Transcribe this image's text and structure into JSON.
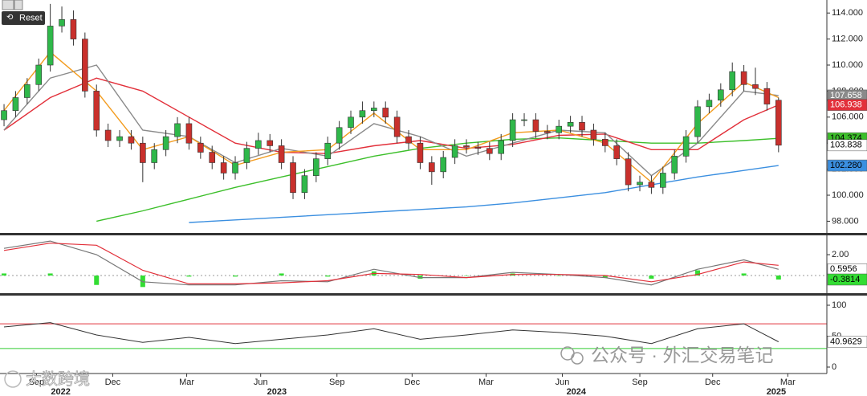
{
  "toolbar": {
    "reset": "Reset"
  },
  "watermarks": {
    "wechat": "公众号 · 外汇交易笔记",
    "logo": "大数跨境"
  },
  "chart_data": [
    {
      "type": "candlestick",
      "open": [
        105.8,
        106.5,
        107.5,
        108.5,
        110,
        113,
        113.5,
        112,
        108,
        105,
        104.2,
        104.5,
        104,
        102.5,
        103.5,
        104.5,
        105.5,
        104,
        103.3,
        102.5,
        101.7,
        102.5,
        103.6,
        104.2,
        103.8,
        102.5,
        100.2,
        101.5,
        102.8,
        104,
        105.2,
        106,
        106.5,
        106.7,
        106,
        104.5,
        104,
        102.5,
        101.8,
        102.9,
        103.8,
        103.7,
        103.6,
        103.2,
        104.2,
        105.8,
        105.8,
        104.9,
        104.8,
        105.3,
        105.6,
        105,
        104.3,
        103.8,
        102.8,
        100.8,
        101,
        100.6,
        101.7,
        103,
        104.5,
        106.8,
        107.3,
        108.1,
        109.5,
        108.5,
        108.2,
        107.3
      ],
      "close": [
        106.5,
        107.5,
        108.5,
        110,
        113,
        113.5,
        112,
        108,
        105,
        104.2,
        104.5,
        104,
        102.5,
        103.5,
        104.5,
        105.5,
        104,
        103.3,
        102.5,
        101.7,
        102.5,
        103.6,
        104.2,
        103.8,
        102.5,
        100.2,
        101.5,
        102.8,
        104,
        105.2,
        106,
        106.5,
        106.7,
        106,
        104.5,
        104,
        102.5,
        101.8,
        102.9,
        103.8,
        103.7,
        103.6,
        103.2,
        104.2,
        105.8,
        105.8,
        104.9,
        104.8,
        105.3,
        105.6,
        105,
        104.3,
        103.8,
        102.8,
        100.8,
        101,
        100.6,
        101.7,
        103,
        104.5,
        106.8,
        107.3,
        108.1,
        109.5,
        108.5,
        108.2,
        107,
        103.84
      ],
      "high": [
        107,
        108,
        109,
        110.5,
        114.7,
        114.5,
        114.2,
        112.5,
        108.5,
        105.5,
        105,
        105,
        104.5,
        104,
        105,
        106,
        106,
        104.5,
        103.8,
        103,
        103,
        104.1,
        104.8,
        104.7,
        104.3,
        103,
        102,
        103.3,
        104.5,
        105.7,
        106.5,
        107.2,
        107.2,
        107.2,
        106.5,
        105,
        104.5,
        103,
        103.4,
        104.3,
        104.3,
        104.1,
        104.1,
        104.7,
        106.3,
        106.3,
        106.3,
        105.4,
        105.8,
        106.1,
        106.1,
        105.5,
        104.8,
        104.3,
        103.3,
        101.5,
        101.5,
        102.2,
        103.5,
        105,
        107.3,
        107.8,
        108.6,
        110.2,
        110,
        109.8,
        108.7,
        107.5
      ],
      "low": [
        105.3,
        106,
        107,
        108,
        109.5,
        112.5,
        111.5,
        107.5,
        104.5,
        103.7,
        103.7,
        103.5,
        101,
        102,
        103,
        104,
        103.5,
        102.8,
        102,
        101.2,
        101.2,
        102,
        103.1,
        103.3,
        102,
        99.7,
        99.7,
        101,
        102.3,
        103.5,
        104.7,
        105.5,
        106,
        105.5,
        104,
        103.5,
        102,
        100.8,
        101.3,
        102.4,
        103.2,
        103.1,
        102.7,
        102.7,
        103.7,
        105.3,
        104.4,
        104.3,
        104.3,
        104.8,
        104.5,
        103.8,
        103.3,
        102.3,
        100.3,
        100.3,
        100.1,
        100.1,
        101.2,
        102.5,
        104,
        106.3,
        106.8,
        107.6,
        108,
        107.7,
        106.5,
        103.3
      ],
      "up_color": "#2fb84a",
      "down_color": "#c9302c",
      "xlim": [
        -0.35,
        71.18
      ],
      "ylim": [
        97.1,
        115
      ],
      "yticks": [
        {
          "value": 98,
          "label": "98.000"
        },
        {
          "value": 100,
          "label": "100.000"
        },
        {
          "value": 102,
          "label": "102.000"
        },
        {
          "value": 104,
          "label": "104.000"
        },
        {
          "value": 106,
          "label": "106.000"
        },
        {
          "value": 108,
          "label": "108.000"
        },
        {
          "value": 110,
          "label": "110.000"
        },
        {
          "value": 112,
          "label": "112.000"
        },
        {
          "value": 114,
          "label": "114.000"
        }
      ],
      "overlays": [
        {
          "color": "#3b8fe0",
          "x": [
            0,
            4,
            8,
            12,
            16,
            20,
            24,
            28,
            32,
            36,
            40,
            44,
            48,
            52,
            56,
            60,
            64,
            67
          ],
          "values": [
            null,
            null,
            null,
            null,
            97.9,
            98.1,
            98.3,
            98.5,
            98.7,
            98.9,
            99.1,
            99.4,
            99.8,
            100.2,
            100.8,
            101.4,
            101.9,
            102.28
          ]
        },
        {
          "color": "#3cbf2a",
          "x": [
            0,
            4,
            8,
            12,
            16,
            20,
            24,
            28,
            32,
            36,
            40,
            44,
            48,
            52,
            56,
            60,
            64,
            67
          ],
          "values": [
            null,
            null,
            98,
            98.8,
            99.7,
            100.6,
            101.4,
            102.2,
            103,
            103.6,
            104,
            104.3,
            104.4,
            104.2,
            104,
            104,
            104.2,
            104.374
          ]
        },
        {
          "color": "#e2303a",
          "x": [
            0,
            4,
            8,
            12,
            16,
            20,
            24,
            28,
            32,
            36,
            40,
            44,
            48,
            52,
            56,
            60,
            64,
            67
          ],
          "values": [
            105,
            107.5,
            109,
            108,
            106,
            104,
            103.3,
            103.2,
            103.8,
            104.2,
            103.6,
            103.9,
            104.6,
            104.7,
            103.5,
            103.5,
            105.8,
            106.938
          ]
        },
        {
          "color": "#8a8a8a",
          "x": [
            0,
            4,
            8,
            12,
            16,
            20,
            24,
            28,
            32,
            36,
            40,
            44,
            48,
            52,
            56,
            60,
            64,
            67
          ],
          "values": [
            105,
            109,
            110,
            105,
            104.5,
            102.5,
            103.6,
            103,
            105.5,
            104.5,
            103,
            104,
            105,
            104.8,
            101.5,
            104,
            108,
            107.658
          ]
        },
        {
          "color": "#f39c1f",
          "x": [
            0,
            4,
            8,
            12,
            16,
            20,
            24,
            28,
            32,
            36,
            40,
            44,
            48,
            52,
            56,
            60,
            64,
            67
          ],
          "values": [
            106.5,
            111,
            108,
            103.5,
            104.5,
            102.3,
            103.3,
            103.5,
            106.3,
            103.5,
            103.5,
            104.8,
            105,
            104,
            101,
            105.5,
            108.7,
            107.5
          ]
        }
      ],
      "last_markers": [
        {
          "value": 107.658,
          "color": "#8a8a8a",
          "text_color": "#ffffff"
        },
        {
          "value": 106.938,
          "color": "#e2303a",
          "text_color": "#ffffff"
        },
        {
          "value": 104.374,
          "color": "#3cbf2a",
          "text_color": "#000000"
        },
        {
          "value": 103.838,
          "color": "#ffffff",
          "text_color": "#000000"
        },
        {
          "value": 102.28,
          "label": "102.280",
          "color": "#3b8fe0",
          "text_color": "#000000"
        }
      ]
    },
    {
      "type": "macd",
      "xlim": [
        -0.35,
        71.18
      ],
      "ylim": [
        -1.69,
        3.85
      ],
      "x": [
        0,
        4,
        8,
        12,
        16,
        20,
        24,
        28,
        32,
        36,
        40,
        44,
        48,
        52,
        56,
        60,
        64,
        67
      ],
      "series": [
        {
          "color": "#777777",
          "values": [
            2.6,
            3.3,
            2.0,
            -0.6,
            -0.9,
            -0.9,
            -0.5,
            -0.6,
            0.6,
            -0.2,
            -0.2,
            0.3,
            0.1,
            -0.2,
            -0.9,
            0.6,
            1.5,
            0.5956
          ]
        },
        {
          "color": "#e2303a",
          "values": [
            2.4,
            3.1,
            2.9,
            0.5,
            -0.8,
            -0.8,
            -0.7,
            -0.5,
            0.2,
            0.1,
            -0.2,
            0.1,
            0.1,
            0,
            -0.6,
            0.1,
            1.3,
            0.977
          ]
        }
      ],
      "histogram": {
        "color": "#33dd33",
        "values": [
          0.2,
          0.2,
          -0.9,
          -1.1,
          -0.1,
          -0.1,
          0.2,
          -0.1,
          0.4,
          -0.3,
          0,
          0.2,
          0,
          -0.2,
          -0.3,
          0.5,
          0.2,
          -0.3814
        ]
      },
      "yticks": [
        {
          "value": 2,
          "label": "2.00"
        }
      ],
      "last_markers": [
        {
          "value": 0.5956,
          "color": "#ffffff",
          "text_color": "#000000"
        },
        {
          "value": -0.3814,
          "color": "#33dd33",
          "text_color": "#000000"
        }
      ]
    },
    {
      "type": "rsi",
      "xlim": [
        -0.35,
        71.18
      ],
      "ylim": [
        -10.4,
        115.6
      ],
      "x": [
        0,
        4,
        8,
        12,
        16,
        20,
        24,
        28,
        32,
        36,
        40,
        44,
        48,
        52,
        56,
        60,
        64,
        67
      ],
      "values": [
        65,
        72,
        52,
        40,
        48,
        38,
        45,
        52,
        62,
        45,
        52,
        60,
        56,
        50,
        38,
        62,
        70,
        40.9629
      ],
      "color": "#333333",
      "levels": [
        {
          "value": 70,
          "color": "#e2303a"
        },
        {
          "value": 30,
          "color": "#33cc33"
        }
      ],
      "yticks": [
        0,
        50,
        100
      ],
      "last_markers": [
        {
          "value": 40.9629,
          "color": "#ffffff",
          "text_color": "#000000"
        }
      ],
      "xticks": [
        {
          "value": 2.8,
          "label": "Sep"
        },
        {
          "value": 9.4,
          "label": "Dec"
        },
        {
          "value": 15.8,
          "label": "Mar"
        },
        {
          "value": 22.2,
          "label": "Jun"
        },
        {
          "value": 28.8,
          "label": "Sep"
        },
        {
          "value": 35.3,
          "label": "Dec"
        },
        {
          "value": 41.7,
          "label": "Mar"
        },
        {
          "value": 48.3,
          "label": "Jun"
        },
        {
          "value": 55,
          "label": "Sep"
        },
        {
          "value": 61.3,
          "label": "Dec"
        },
        {
          "value": 67.8,
          "label": "Mar"
        }
      ],
      "year_ticks": [
        {
          "value": 4.9,
          "label": "2022"
        },
        {
          "value": 23.6,
          "label": "2023"
        },
        {
          "value": 49.5,
          "label": "2024"
        },
        {
          "value": 66.8,
          "label": "2025"
        }
      ]
    }
  ]
}
